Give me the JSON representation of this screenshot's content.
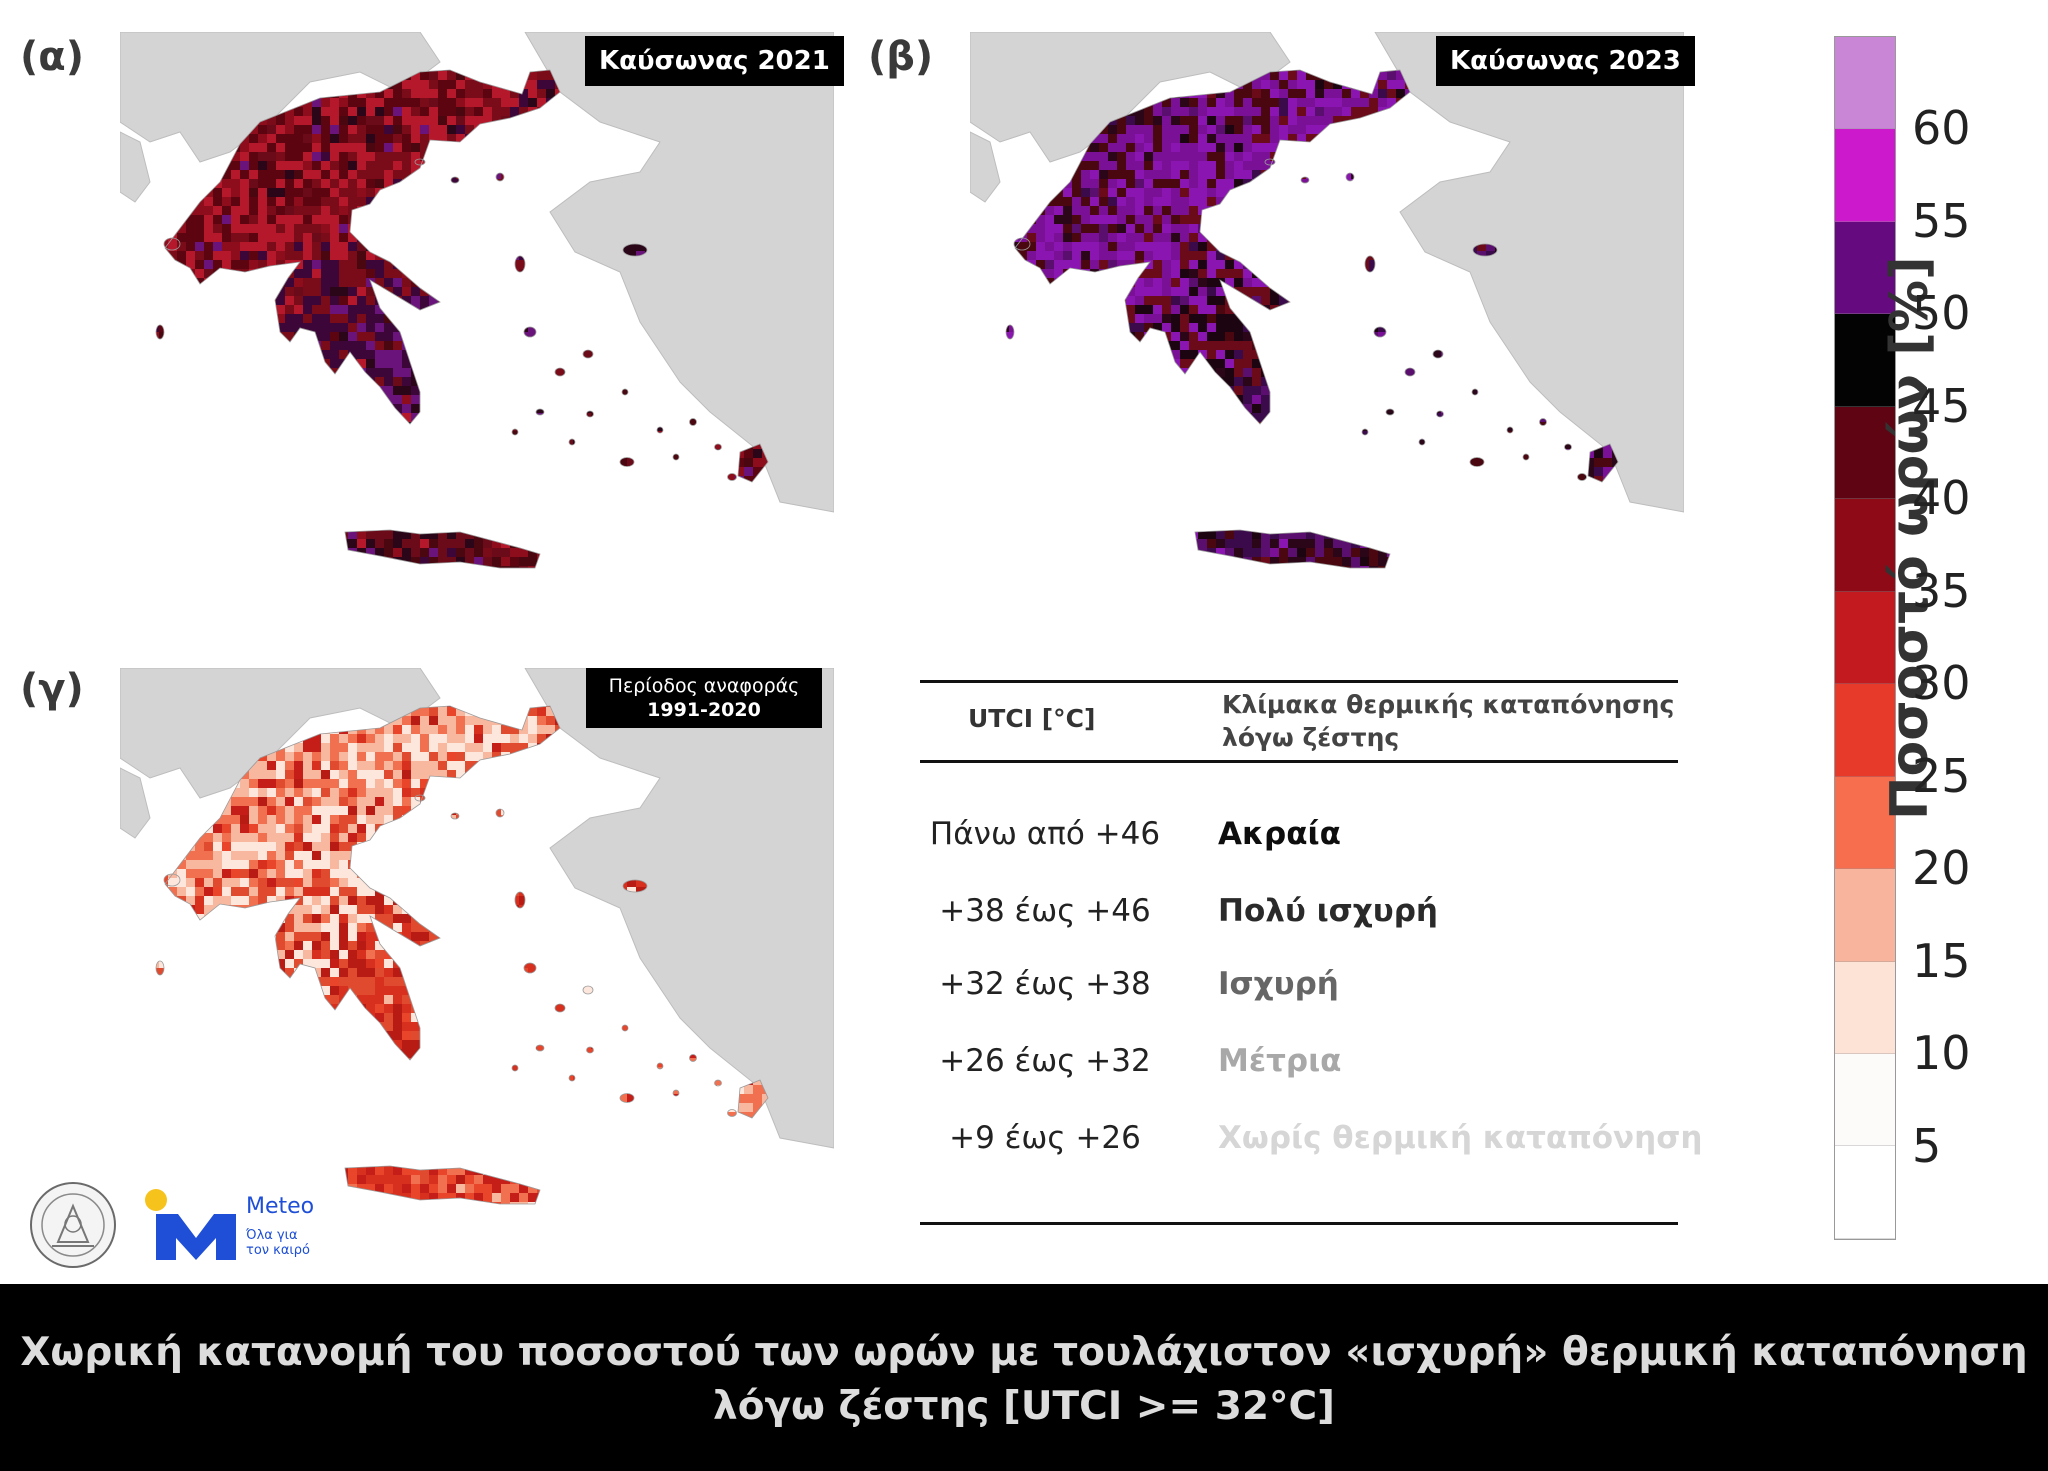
{
  "panels": [
    {
      "letter": "(α)",
      "title": "Καύσωνας 2021"
    },
    {
      "letter": "(β)",
      "title": "Καύσωνας 2023"
    },
    {
      "letter": "(γ)",
      "title_line1": "Περίοδος αναφοράς",
      "title_line2": "1991-2020"
    }
  ],
  "palettes": {
    "heatwave_2021": [
      "#6b0a18",
      "#4a0710",
      "#8d0d1d",
      "#5c0410",
      "#b5172b",
      "#7a0c1a",
      "#3d0638",
      "#6a137a",
      "#2a0618"
    ],
    "heatwave_2023": [
      "#3a0a4a",
      "#5a0f6e",
      "#2a0618",
      "#4a0710",
      "#7a1096",
      "#8a15b0",
      "#6b0a18",
      "#1c0410"
    ],
    "reference": [
      "#d8301f",
      "#e8452a",
      "#c51d18",
      "#f07050",
      "#f8b8a0",
      "#fde6dc",
      "#e04a2f",
      "#b81a14"
    ],
    "land_other": "#d4d4d4",
    "sea": "#ffffff"
  },
  "utci_table": {
    "header_col1": "UTCI [°C]",
    "header_col2_line1": "Κλίμακα θερμικής καταπόνησης",
    "header_col2_line2": "λόγω ζέστης",
    "rows": [
      {
        "range": "Πάνω από +46",
        "category": "Ακραία",
        "color": "#0d0d0d"
      },
      {
        "range": "+38 έως +46",
        "category": "Πολύ ισχυρή",
        "color": "#2a2a2a"
      },
      {
        "range": "+32 έως +38",
        "category": "Ισχυρή",
        "color": "#666666"
      },
      {
        "range": "+26 έως +32",
        "category": "Μέτρια",
        "color": "#a8a8a8"
      },
      {
        "range": "+9 έως +26",
        "category": "Χωρίς θερμική καταπόνηση",
        "color": "#d6d6d6"
      }
    ]
  },
  "colorbar": {
    "label": "Ποσοστό ωρών [%]",
    "ticks": [
      "60",
      "55",
      "50",
      "45",
      "40",
      "35",
      "30",
      "25",
      "20",
      "15",
      "10",
      "5"
    ],
    "colors": [
      "#c985d6",
      "#cc19cc",
      "#660a80",
      "#030303",
      "#5e0412",
      "#8e0a16",
      "#c21a1e",
      "#e83a2b",
      "#f76e4f",
      "#f8b49c",
      "#fde2d6",
      "#fdfbfa",
      "#ffffff"
    ]
  },
  "footer": {
    "line1": "Χωρική κατανομή του ποσοστού των ωρών με τουλάχιστον «ισχυρή» θερμική καταπόνηση",
    "line2": "λόγω ζέστης [UTCI >= 32°C]"
  },
  "logos": {
    "meteo_word": "Meteo",
    "meteo_tag_line1": "Όλα για",
    "meteo_tag_line2": "τον καιρό"
  }
}
